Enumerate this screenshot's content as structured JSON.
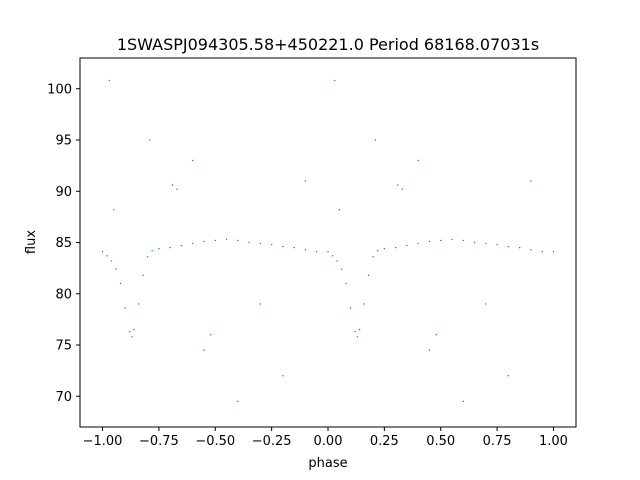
{
  "chart_data": {
    "type": "scatter",
    "title": "1SWASPJ094305.58+450221.0 Period 68168.07031s",
    "xlabel": "phase",
    "ylabel": "flux",
    "xlim": [
      -1.1,
      1.1
    ],
    "ylim": [
      67,
      103
    ],
    "xticks": [
      -1.0,
      -0.75,
      -0.5,
      -0.25,
      0.0,
      0.25,
      0.5,
      0.75,
      1.0
    ],
    "xtick_labels": [
      "−1.00",
      "−0.75",
      "−0.50",
      "−0.25",
      "0.00",
      "0.25",
      "0.50",
      "0.75",
      "1.00"
    ],
    "yticks": [
      70,
      75,
      80,
      85,
      90,
      95,
      100
    ],
    "ytick_labels": [
      "70",
      "75",
      "80",
      "85",
      "90",
      "95",
      "100"
    ],
    "grid": false,
    "legend": "none",
    "marker_color": "#1f77b4",
    "series": [
      {
        "phase_range": [
          -1.0,
          1.0
        ],
        "baseline_flux": 84.5,
        "eclipse_phases": [
          -0.87,
          0.13
        ],
        "eclipse_depth_flux": 76,
        "scatter_range": [
          69,
          101
        ],
        "points": [
          [
            -1.0,
            84.1
          ],
          [
            -0.98,
            83.7
          ],
          [
            -0.96,
            83.2
          ],
          [
            -0.94,
            82.4
          ],
          [
            -0.92,
            81.0
          ],
          [
            -0.9,
            78.6
          ],
          [
            -0.88,
            76.3
          ],
          [
            -0.87,
            75.8
          ],
          [
            -0.86,
            76.5
          ],
          [
            -0.84,
            79.0
          ],
          [
            -0.82,
            81.8
          ],
          [
            -0.8,
            83.6
          ],
          [
            -0.78,
            84.2
          ],
          [
            -0.75,
            84.4
          ],
          [
            -0.7,
            84.5
          ],
          [
            -0.65,
            84.7
          ],
          [
            -0.6,
            84.9
          ],
          [
            -0.55,
            85.1
          ],
          [
            -0.5,
            85.2
          ],
          [
            -0.45,
            85.3
          ],
          [
            -0.4,
            85.2
          ],
          [
            -0.35,
            85.0
          ],
          [
            -0.3,
            84.9
          ],
          [
            -0.25,
            84.8
          ],
          [
            -0.2,
            84.6
          ],
          [
            -0.15,
            84.5
          ],
          [
            -0.1,
            84.3
          ],
          [
            -0.05,
            84.1
          ],
          [
            0.0,
            84.1
          ],
          [
            0.02,
            83.7
          ],
          [
            0.04,
            83.2
          ],
          [
            0.06,
            82.4
          ],
          [
            0.08,
            81.0
          ],
          [
            0.1,
            78.6
          ],
          [
            0.12,
            76.3
          ],
          [
            0.13,
            75.8
          ],
          [
            0.14,
            76.5
          ],
          [
            0.16,
            79.0
          ],
          [
            0.18,
            81.8
          ],
          [
            0.2,
            83.6
          ],
          [
            0.22,
            84.2
          ],
          [
            0.25,
            84.4
          ],
          [
            0.3,
            84.5
          ],
          [
            0.35,
            84.7
          ],
          [
            0.4,
            84.9
          ],
          [
            0.45,
            85.1
          ],
          [
            0.5,
            85.2
          ],
          [
            0.55,
            85.3
          ],
          [
            0.6,
            85.2
          ],
          [
            0.65,
            85.0
          ],
          [
            0.7,
            84.9
          ],
          [
            0.75,
            84.8
          ],
          [
            0.8,
            84.6
          ],
          [
            0.85,
            84.5
          ],
          [
            0.9,
            84.3
          ],
          [
            0.95,
            84.1
          ],
          [
            1.0,
            84.1
          ],
          [
            -0.69,
            90.6
          ],
          [
            -0.67,
            90.2
          ],
          [
            0.31,
            90.6
          ],
          [
            0.33,
            90.2
          ],
          [
            -0.52,
            76.0
          ],
          [
            -0.55,
            74.5
          ],
          [
            0.48,
            76.0
          ],
          [
            0.45,
            74.5
          ],
          [
            -0.79,
            95.0
          ],
          [
            0.21,
            95.0
          ],
          [
            -0.97,
            100.8
          ],
          [
            0.03,
            100.8
          ],
          [
            -0.4,
            69.5
          ],
          [
            0.6,
            69.5
          ],
          [
            -0.2,
            72.0
          ],
          [
            0.8,
            72.0
          ],
          [
            -0.1,
            91.0
          ],
          [
            0.9,
            91.0
          ],
          [
            -0.95,
            88.2
          ],
          [
            0.05,
            88.2
          ],
          [
            -0.3,
            79.0
          ],
          [
            0.7,
            79.0
          ],
          [
            -0.6,
            93.0
          ],
          [
            0.4,
            93.0
          ]
        ]
      }
    ]
  }
}
